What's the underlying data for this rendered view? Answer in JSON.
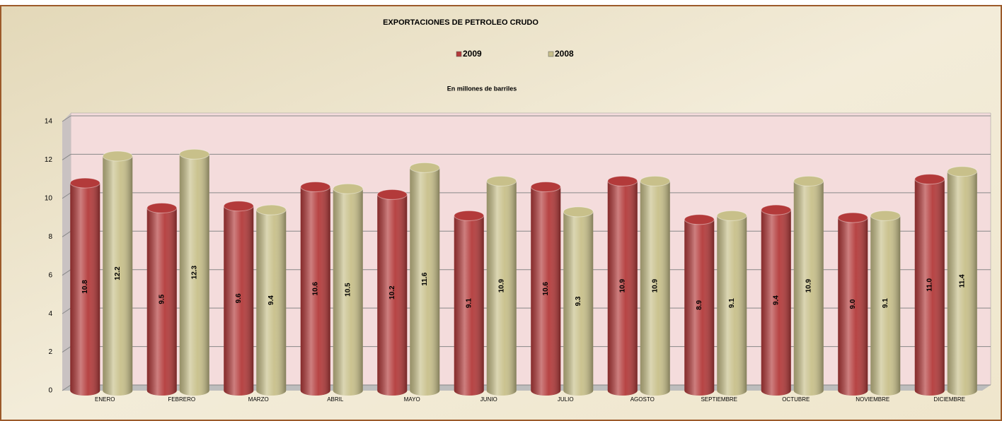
{
  "chart_data": {
    "type": "bar",
    "title": "EXPORTACIONES  DE PETROLEO CRUDO",
    "subtitle": "En millones de barriles",
    "categories": [
      "ENERO",
      "FEBRERO",
      "MARZO",
      "ABRIL",
      "MAYO",
      "JUNIO",
      "JULIO",
      "AGOSTO",
      "SEPTIEMBRE",
      "OCTUBRE",
      "NOVIEMBRE",
      "DICIEMBRE"
    ],
    "series": [
      {
        "name": "2009",
        "color": "#b33a3a",
        "values": [
          10.8,
          9.5,
          9.6,
          10.6,
          10.2,
          9.1,
          10.6,
          10.9,
          8.9,
          9.4,
          9.0,
          11.0
        ],
        "value_labels": [
          "10.8",
          "9.5",
          "9.6",
          "10.6",
          "10.2",
          "9.1",
          "10.6",
          "10.9",
          "8.9",
          "9.4",
          "9.0",
          "11.0"
        ]
      },
      {
        "name": "2008",
        "color": "#c8c08a",
        "values": [
          12.2,
          12.3,
          9.4,
          10.5,
          11.6,
          10.9,
          9.3,
          10.9,
          9.1,
          10.9,
          9.1,
          11.4
        ],
        "value_labels": [
          "12.2",
          "12.3",
          "9.4",
          "10.5",
          "11.6",
          "10.9",
          "9.3",
          "10.9",
          "9.1",
          "10.9",
          "9.1",
          "11.4"
        ]
      }
    ],
    "ylim": [
      0,
      14
    ],
    "yticks": [
      0,
      2,
      4,
      6,
      8,
      10,
      12,
      14
    ],
    "grid": true,
    "legend": "top"
  }
}
